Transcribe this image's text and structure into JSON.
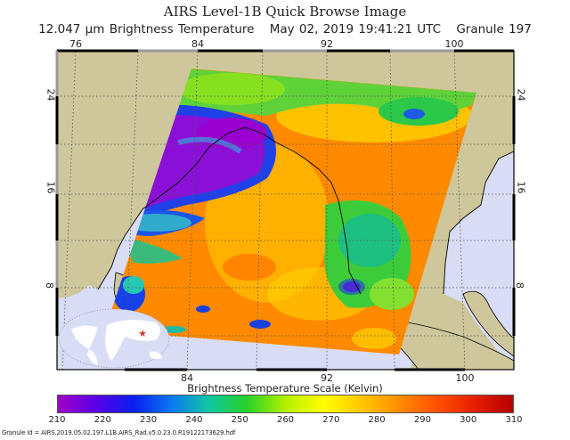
{
  "header": {
    "title": "AIRS Level-1B Quick Browse Image",
    "channel": "12.047 μm Brightness Temperature",
    "datetime": "May 02, 2019 19:41:21 UTC",
    "granule": "Granule 197"
  },
  "map": {
    "lon_labels_top": [
      "76",
      "84",
      "92",
      "100"
    ],
    "lon_labels_bottom": [
      "84",
      "92",
      "100"
    ],
    "lat_labels_left": [
      "24",
      "16",
      "8"
    ],
    "lat_labels_right": [
      "24",
      "16",
      "8"
    ],
    "colors": {
      "land": "#cdc79b",
      "ocean": "#d8dcf5",
      "frame": "#000000",
      "grid": "#555555",
      "marker": "#d43a2a"
    },
    "inset": {
      "description": "world-locator-map",
      "marker": "red-star"
    }
  },
  "colorbar": {
    "title": "Brightness Temperature Scale (Kelvin)",
    "ticks": [
      "210",
      "220",
      "230",
      "240",
      "250",
      "260",
      "270",
      "280",
      "290",
      "300",
      "310"
    ],
    "min": 210,
    "max": 310,
    "units": "Kelvin",
    "gradient": [
      "#a000c8",
      "#5a00e6",
      "#0a1ef0",
      "#0a78f0",
      "#10c8a0",
      "#28d228",
      "#b4f000",
      "#ffff00",
      "#ffc800",
      "#ff8c00",
      "#ff5000",
      "#e61e00",
      "#b40000"
    ]
  },
  "footer": {
    "granule_id": "Granule Id = AIRS.2019.05.02.197.L1B.AIRS_Rad.v5.0.23.0.R19122173629.hdf"
  }
}
